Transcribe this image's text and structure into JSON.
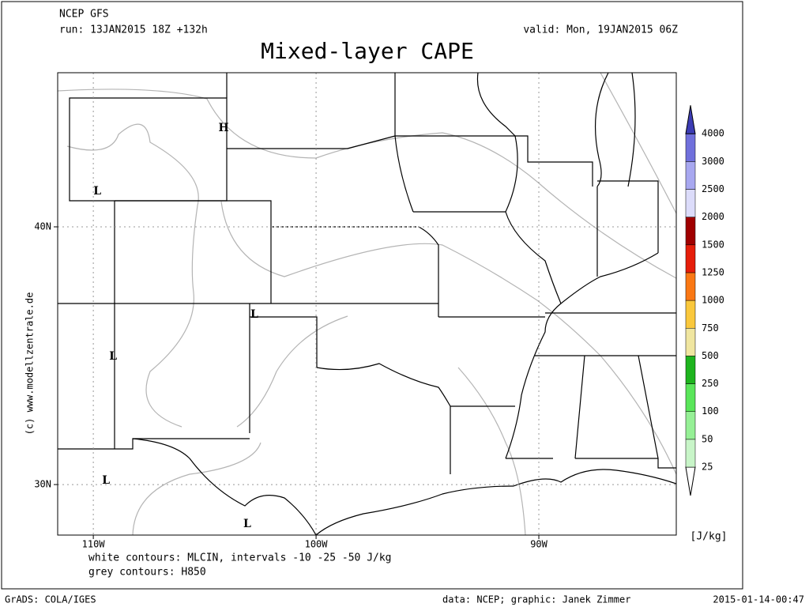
{
  "header": {
    "model": "NCEP GFS",
    "run": "run: 13JAN2015 18Z +132h",
    "valid": "valid: Mon, 19JAN2015 06Z",
    "title": "Mixed-layer CAPE"
  },
  "map": {
    "xlim": [
      -111.6,
      -83.83
    ],
    "ylim": [
      28.04,
      45.98
    ],
    "xticks": [
      {
        "value": -110,
        "label": "110W"
      },
      {
        "value": -100,
        "label": "100W"
      },
      {
        "value": -90,
        "label": "90W"
      }
    ],
    "yticks": [
      {
        "value": 30,
        "label": "30N"
      },
      {
        "value": 40,
        "label": "40N"
      }
    ],
    "grid": true,
    "pressure_centers": [
      {
        "label": "H",
        "lon": -104.15,
        "lat": 43.83
      },
      {
        "label": "L",
        "lon": -109.82,
        "lat": 41.38
      },
      {
        "label": "L",
        "lon": -102.77,
        "lat": 36.6
      },
      {
        "label": "L",
        "lon": -109.11,
        "lat": 34.97
      },
      {
        "label": "L",
        "lon": -109.43,
        "lat": 30.15
      },
      {
        "label": "L",
        "lon": -103.09,
        "lat": 28.47
      }
    ]
  },
  "colorbar": {
    "levels": [
      25,
      50,
      100,
      250,
      500,
      750,
      1000,
      1250,
      1500,
      2000,
      2500,
      3000,
      4000
    ],
    "colors": [
      "#c8f5c8",
      "#96f096",
      "#5ae65a",
      "#1eb41e",
      "#f0e6a0",
      "#fac83c",
      "#fa7814",
      "#e61e0a",
      "#a00000",
      "#dcdcfa",
      "#a8a8f0",
      "#7070dc"
    ],
    "under_color": "#ffffff",
    "over_color": "#3c3cb4",
    "unit": "[J/kg]"
  },
  "watermark": "(c) www.modellzentrale.de",
  "notes": [
    "white contours: MLCIN, intervals -10 -25 -50 J/kg",
    "grey contours: H850"
  ],
  "footer": {
    "left": "GrADS: COLA/IGES",
    "center": "data: NCEP; graphic: Janek Zimmer",
    "right": "2015-01-14-00:47"
  }
}
